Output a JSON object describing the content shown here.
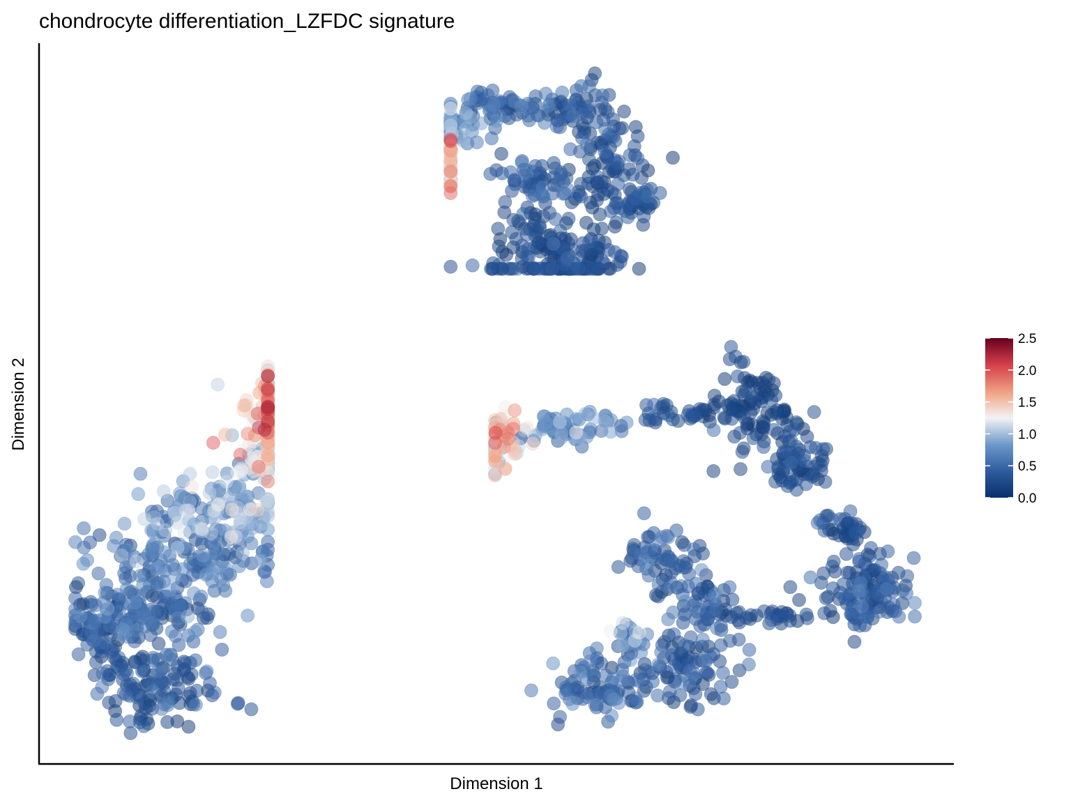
{
  "chart_data": {
    "type": "scatter",
    "title": "chondrocyte differentiation_LZFDC signature",
    "xlabel": "Dimension 1",
    "ylabel": "Dimension 2",
    "x_ticks_shown": false,
    "y_ticks_shown": false,
    "grid": false,
    "legend": {
      "position": "right",
      "kind": "colorbar",
      "ticks": [
        {
          "value": 0.0,
          "label": "0.0"
        },
        {
          "value": 0.5,
          "label": "0.5"
        },
        {
          "value": 1.0,
          "label": "1.0"
        },
        {
          "value": 1.5,
          "label": "1.5"
        },
        {
          "value": 2.0,
          "label": "2.0"
        },
        {
          "value": 2.5,
          "label": "2.5"
        }
      ],
      "range": [
        0.0,
        2.5
      ],
      "colors": [
        "#08306b",
        "#2c5a9e",
        "#6b97c9",
        "#f3f3f3",
        "#f0a283",
        "#d6404c",
        "#67001f"
      ]
    },
    "point_opacity": 0.5,
    "clusters": [
      {
        "id": "top",
        "n": 560,
        "x": [
          -0.9,
          3.6
        ],
        "y": [
          3.5,
          8.0
        ],
        "value_trend": "high on left tip, low elsewhere"
      },
      {
        "id": "left",
        "n": 750,
        "x": [
          -8.5,
          -4.6
        ],
        "y": [
          -7.0,
          1.8
        ],
        "value_trend": "high at top blob, low below"
      },
      {
        "id": "right",
        "n": 820,
        "x": [
          0.0,
          8.5
        ],
        "y": [
          -7.0,
          1.9
        ],
        "value_trend": "moderate at left tip, low elsewhere"
      }
    ]
  }
}
